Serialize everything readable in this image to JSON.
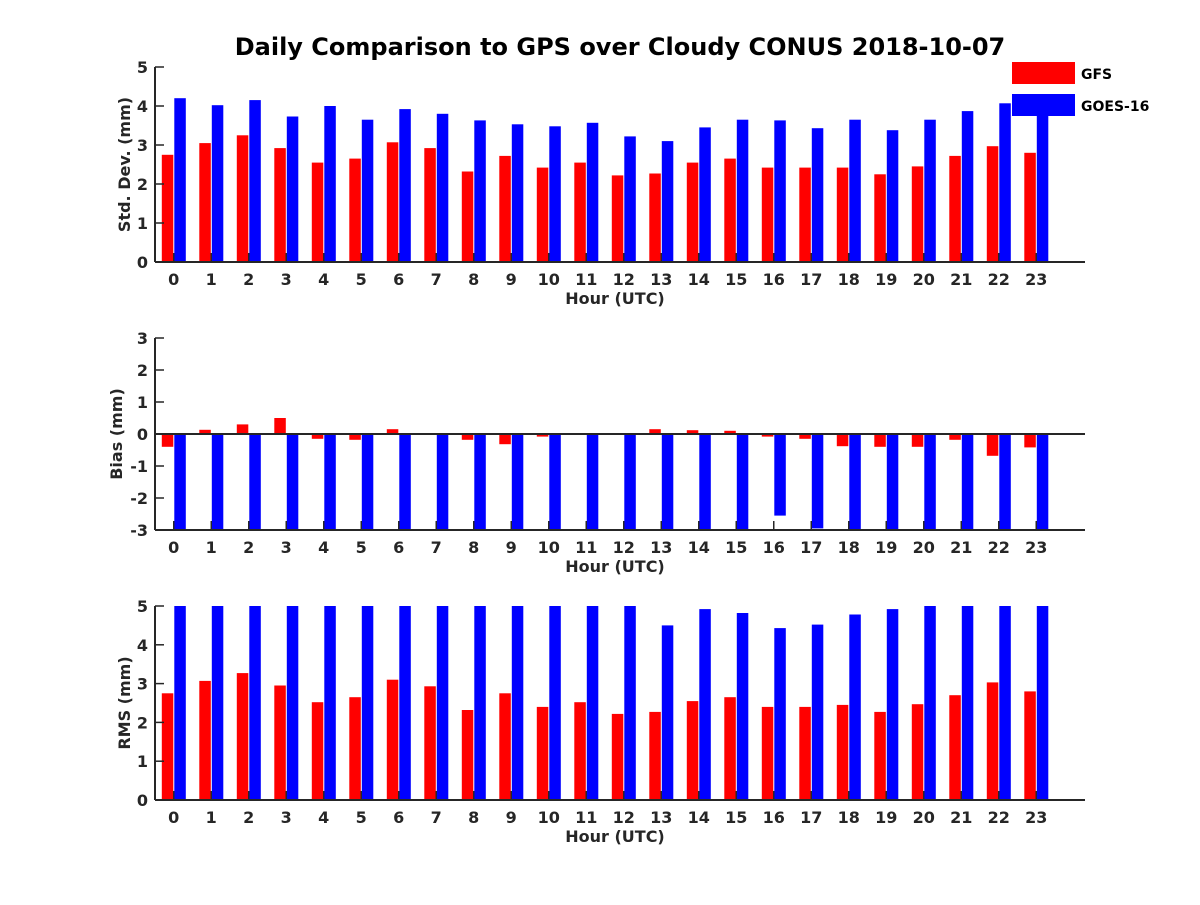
{
  "chart_data": [
    {
      "type": "bar",
      "title": "Daily Comparison to GPS over Cloudy CONUS 2018-10-07",
      "xlabel": "Hour (UTC)",
      "ylabel": "Std. Dev. (mm)",
      "ylim": [
        0,
        5
      ],
      "yticks": [
        "0",
        "1",
        "2",
        "3",
        "4",
        "5"
      ],
      "categories": [
        "0",
        "1",
        "2",
        "3",
        "4",
        "5",
        "6",
        "7",
        "8",
        "9",
        "10",
        "11",
        "12",
        "13",
        "14",
        "15",
        "16",
        "17",
        "18",
        "19",
        "20",
        "21",
        "22",
        "23"
      ],
      "series": [
        {
          "name": "GFS",
          "color": "#ff0000",
          "values": [
            2.75,
            3.05,
            3.25,
            2.92,
            2.55,
            2.65,
            3.07,
            2.92,
            2.32,
            2.72,
            2.42,
            2.55,
            2.22,
            2.27,
            2.55,
            2.65,
            2.42,
            2.42,
            2.42,
            2.25,
            2.45,
            2.72,
            2.97,
            2.8
          ]
        },
        {
          "name": "GOES-16",
          "color": "#0000ff",
          "values": [
            4.2,
            4.02,
            4.15,
            3.73,
            4.0,
            3.65,
            3.92,
            3.8,
            3.63,
            3.53,
            3.48,
            3.57,
            3.22,
            3.1,
            3.45,
            3.65,
            3.63,
            3.43,
            3.65,
            3.38,
            3.65,
            3.87,
            4.07,
            3.75
          ]
        }
      ],
      "legend_position": "top-right",
      "grid": false
    },
    {
      "type": "bar",
      "xlabel": "Hour (UTC)",
      "ylabel": "Bias (mm)",
      "ylim": [
        -3,
        3
      ],
      "yticks": [
        "-3",
        "-2",
        "-1",
        "0",
        "1",
        "2",
        "3"
      ],
      "categories": [
        "0",
        "1",
        "2",
        "3",
        "4",
        "5",
        "6",
        "7",
        "8",
        "9",
        "10",
        "11",
        "12",
        "13",
        "14",
        "15",
        "16",
        "17",
        "18",
        "19",
        "20",
        "21",
        "22",
        "23"
      ],
      "series": [
        {
          "name": "GFS",
          "color": "#ff0000",
          "values": [
            -0.4,
            0.13,
            0.3,
            0.5,
            -0.15,
            -0.18,
            0.15,
            -0.02,
            -0.18,
            -0.32,
            -0.08,
            -0.03,
            -0.02,
            0.15,
            0.12,
            0.1,
            -0.08,
            -0.15,
            -0.38,
            -0.4,
            -0.4,
            -0.18,
            -0.68,
            -0.42
          ]
        },
        {
          "name": "GOES-16",
          "color": "#0000ff",
          "values": [
            -3.2,
            -3.2,
            -3.2,
            -3.2,
            -3.2,
            -3.2,
            -3.2,
            -3.2,
            -3.2,
            -3.2,
            -3.2,
            -3.2,
            -3.2,
            -3.2,
            -3.2,
            -3.2,
            -2.55,
            -2.95,
            -3.2,
            -3.2,
            -3.2,
            -3.2,
            -3.2,
            -3.2
          ]
        }
      ],
      "grid": false
    },
    {
      "type": "bar",
      "xlabel": "Hour (UTC)",
      "ylabel": "RMS (mm)",
      "ylim": [
        0,
        5
      ],
      "yticks": [
        "0",
        "1",
        "2",
        "3",
        "4",
        "5"
      ],
      "categories": [
        "0",
        "1",
        "2",
        "3",
        "4",
        "5",
        "6",
        "7",
        "8",
        "9",
        "10",
        "11",
        "12",
        "13",
        "14",
        "15",
        "16",
        "17",
        "18",
        "19",
        "20",
        "21",
        "22",
        "23"
      ],
      "series": [
        {
          "name": "GFS",
          "color": "#ff0000",
          "values": [
            2.75,
            3.07,
            3.27,
            2.95,
            2.52,
            2.65,
            3.1,
            2.93,
            2.32,
            2.75,
            2.4,
            2.52,
            2.22,
            2.27,
            2.55,
            2.65,
            2.4,
            2.4,
            2.45,
            2.27,
            2.47,
            2.7,
            3.03,
            2.8
          ]
        },
        {
          "name": "GOES-16",
          "color": "#0000ff",
          "values": [
            5.2,
            5.2,
            5.2,
            5.2,
            5.2,
            5.2,
            5.2,
            5.2,
            5.2,
            5.2,
            5.2,
            5.2,
            5.2,
            4.5,
            4.92,
            4.82,
            4.43,
            4.52,
            4.78,
            4.92,
            5.2,
            5.2,
            5.2,
            5.2
          ]
        }
      ],
      "grid": false
    }
  ]
}
